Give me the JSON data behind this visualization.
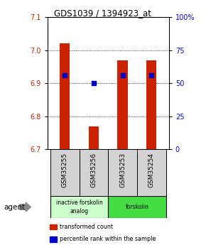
{
  "title": "GDS1039 / 1394923_at",
  "samples": [
    "GSM35255",
    "GSM35256",
    "GSM35253",
    "GSM35254"
  ],
  "bar_values": [
    7.02,
    6.77,
    6.97,
    6.97
  ],
  "bar_bottom": 6.7,
  "percentile_values": [
    6.925,
    6.9,
    6.925,
    6.925
  ],
  "ylim": [
    6.7,
    7.1
  ],
  "yticks_left": [
    6.7,
    6.8,
    6.9,
    7.0,
    7.1
  ],
  "yticks_right": [
    0,
    25,
    50,
    75,
    100
  ],
  "yticks_right_labels": [
    "0",
    "25",
    "50",
    "75",
    "100%"
  ],
  "bar_color": "#cc2200",
  "percentile_color": "#0000cc",
  "agent_groups": [
    {
      "label": "inactive forskolin\nanalog",
      "color": "#ccffcc",
      "span": [
        0,
        2
      ]
    },
    {
      "label": "forskolin",
      "color": "#44dd44",
      "span": [
        2,
        4
      ]
    }
  ],
  "legend_items": [
    {
      "color": "#cc2200",
      "label": "transformed count"
    },
    {
      "color": "#0000cc",
      "label": "percentile rank within the sample"
    }
  ],
  "bar_width": 0.35
}
